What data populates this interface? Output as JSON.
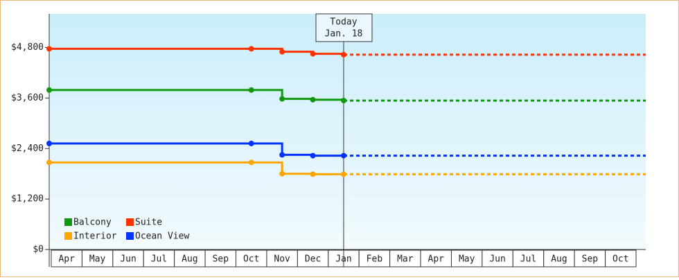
{
  "chart_data": {
    "type": "step-line",
    "categories": [
      "Apr",
      "May",
      "Jun",
      "Jul",
      "Aug",
      "Sep",
      "Oct",
      "Nov",
      "Dec",
      "Jan",
      "Feb",
      "Mar",
      "Apr",
      "May",
      "Jun",
      "Jul",
      "Aug",
      "Sep",
      "Oct"
    ],
    "series": [
      {
        "name": "Balcony",
        "color": "#109910",
        "values": [
          3790,
          3790,
          3790,
          3790,
          3790,
          3790,
          3790,
          3580,
          3560,
          3540,
          null,
          null,
          null,
          null,
          null,
          null,
          null,
          null,
          null
        ]
      },
      {
        "name": "Suite",
        "color": "#ff3300",
        "values": [
          4770,
          4770,
          4770,
          4770,
          4770,
          4770,
          4770,
          4700,
          4650,
          4630,
          null,
          null,
          null,
          null,
          null,
          null,
          null,
          null,
          null
        ]
      },
      {
        "name": "Interior",
        "color": "#ffa500",
        "values": [
          2070,
          2070,
          2070,
          2070,
          2070,
          2070,
          2070,
          1800,
          1790,
          1790,
          null,
          null,
          null,
          null,
          null,
          null,
          null,
          null,
          null
        ]
      },
      {
        "name": "Ocean View",
        "color": "#0033ff",
        "values": [
          2520,
          2520,
          2520,
          2520,
          2520,
          2520,
          2520,
          2250,
          2230,
          2230,
          null,
          null,
          null,
          null,
          null,
          null,
          null,
          null,
          null
        ]
      }
    ],
    "ylim": [
      0,
      5600
    ],
    "yticks": [
      {
        "value": 0,
        "label": "$0"
      },
      {
        "value": 1200,
        "label": "$1,200"
      },
      {
        "value": 2400,
        "label": "$2,400"
      },
      {
        "value": 3600,
        "label": "$3,600"
      },
      {
        "value": 4800,
        "label": "$4,800"
      }
    ],
    "annotation": {
      "label": "Today",
      "date": "Jan. 18",
      "category": 9
    },
    "legend": "bottom-left",
    "projection": "dashed"
  }
}
